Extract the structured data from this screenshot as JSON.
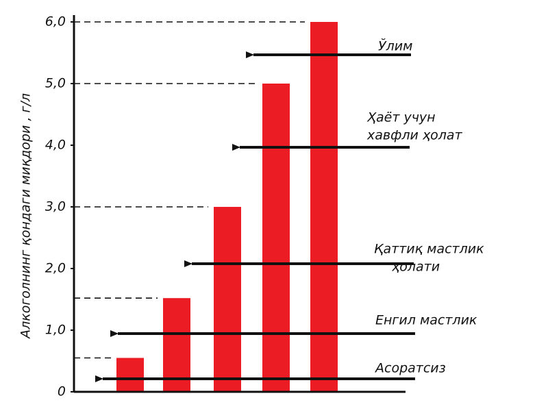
{
  "chart_data": {
    "type": "bar",
    "y_label": "Алкоголнинг қондаги миқдори , г/л",
    "categories": [
      null,
      null,
      null,
      null,
      null
    ],
    "values": [
      0.55,
      1.52,
      3.0,
      5.0,
      6.0
    ],
    "color": "#ec1c24",
    "ylim": [
      0,
      6
    ],
    "yticks": [
      0,
      {
        "value": 1,
        "label": "1,0"
      },
      {
        "value": 2,
        "label": "2,0"
      },
      {
        "value": 3,
        "label": "3,0"
      },
      {
        "value": 4,
        "label": "4,0"
      },
      {
        "value": 5,
        "label": "5,0"
      },
      {
        "value": 6,
        "label": "6,0"
      }
    ],
    "level_lines": true,
    "annotations": [
      [
        "Ўлим"
      ],
      [
        "Ҳаёт учун",
        "хавфли ҳолат"
      ],
      [
        "Қаттиқ мастлик",
        "ҳолати"
      ],
      [
        "Енгил мастлик"
      ],
      [
        "Асоратсиз"
      ]
    ]
  }
}
